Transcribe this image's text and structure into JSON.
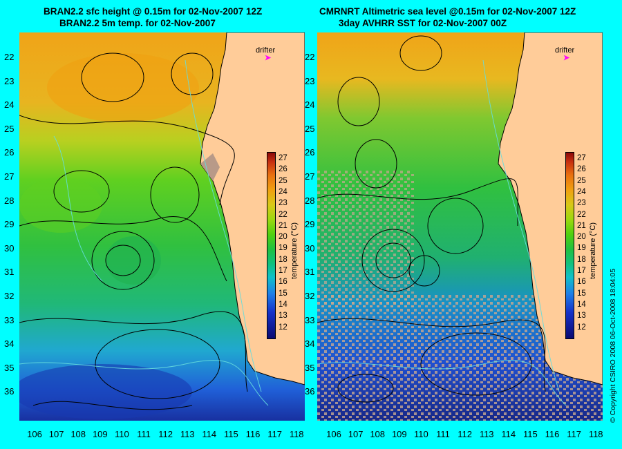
{
  "left_panel": {
    "title_line1": "BRAN2.2 sfc height @ 0.15m for 02-Nov-2007 12Z",
    "title_line2": "BRAN2.2 5m temp. for 02-Nov-2007"
  },
  "right_panel": {
    "title_line1": "CMRNRT Altimetric sea level  @0.15m  for 02-Nov-2007 12Z",
    "title_line2": "3day AVHRR SST for 02-Nov-2007 00Z"
  },
  "latitude_ticks": [
    "22",
    "23",
    "24",
    "25",
    "26",
    "27",
    "28",
    "29",
    "30",
    "31",
    "32",
    "33",
    "34",
    "35",
    "36"
  ],
  "longitude_ticks": [
    "106",
    "107",
    "108",
    "109",
    "110",
    "111",
    "112",
    "113",
    "114",
    "115",
    "116",
    "117",
    "118"
  ],
  "colorbar": {
    "ticks": [
      "27",
      "26",
      "25",
      "24",
      "23",
      "22",
      "21",
      "20",
      "19",
      "18",
      "17",
      "16",
      "15",
      "14",
      "13",
      "12"
    ],
    "label": "temperature (°C)"
  },
  "drifter_label": "drifter",
  "drifter_marker": "➤",
  "copyright": "© Copyright CSIRO 2008    06-Oct-2008 18:04:05",
  "colors": {
    "background": "#00ffff",
    "land": "#ffcc99",
    "contour": "#000000",
    "bathymetry": "#66dddd"
  }
}
